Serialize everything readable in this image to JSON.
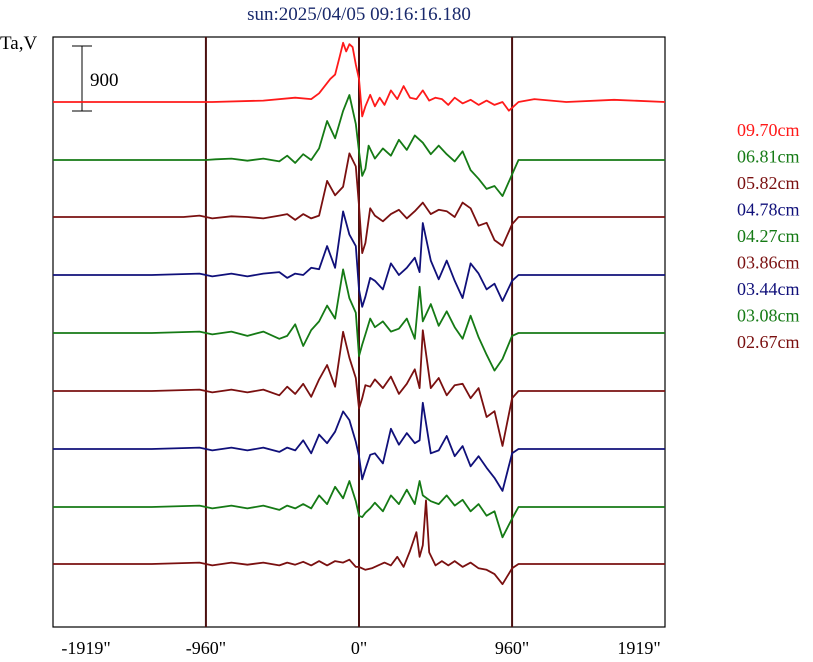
{
  "chart_data": {
    "type": "line",
    "title": "sun:2025/04/05 09:16:16.180",
    "ylabel": "Ta,V",
    "scale_bar_label": "900",
    "scale_bar_value": 900,
    "xlim": [
      -1919,
      1919
    ],
    "x_ticks": [
      -1919,
      -960,
      0,
      960,
      1919
    ],
    "x_tick_labels": [
      "-1919\"",
      "-960\"",
      "0\"",
      "960\"",
      "1919\""
    ],
    "vertical_lines": [
      -960,
      0,
      960
    ],
    "grid": false,
    "legend_position": "right",
    "series": [
      {
        "name": "09.70cm",
        "color": "#ff1a1a",
        "x": [
          -1919,
          -1000,
          -960,
          -920,
          -600,
          -400,
          -300,
          -250,
          -180,
          -150,
          -120,
          -100,
          -80,
          -60,
          -40,
          -20,
          0,
          20,
          40,
          70,
          100,
          130,
          160,
          200,
          240,
          280,
          320,
          360,
          400,
          440,
          480,
          520,
          560,
          600,
          650,
          700,
          750,
          800,
          850,
          900,
          940,
          960,
          1000,
          1100,
          1300,
          1600,
          1919
        ],
        "y": [
          0,
          0,
          0,
          0,
          20,
          60,
          40,
          120,
          320,
          380,
          640,
          820,
          700,
          800,
          760,
          520,
          320,
          -200,
          -60,
          100,
          -60,
          60,
          -40,
          160,
          40,
          220,
          60,
          40,
          160,
          20,
          60,
          40,
          -40,
          60,
          -20,
          30,
          -40,
          20,
          -40,
          0,
          -120,
          -80,
          0,
          40,
          0,
          30,
          0
        ]
      },
      {
        "name": "06.81cm",
        "color": "#157a15",
        "x": [
          -1919,
          -1200,
          -1000,
          -960,
          -900,
          -800,
          -700,
          -600,
          -500,
          -450,
          -400,
          -350,
          -300,
          -250,
          -200,
          -150,
          -100,
          -60,
          -20,
          0,
          20,
          40,
          60,
          100,
          150,
          200,
          250,
          300,
          350,
          400,
          450,
          500,
          550,
          600,
          650,
          700,
          750,
          800,
          850,
          900,
          960,
          1000,
          1919
        ],
        "y": [
          0,
          0,
          0,
          0,
          10,
          20,
          -10,
          20,
          -20,
          60,
          -40,
          80,
          0,
          160,
          540,
          300,
          680,
          900,
          500,
          120,
          -220,
          -120,
          200,
          20,
          160,
          60,
          280,
          140,
          340,
          240,
          80,
          200,
          80,
          -20,
          120,
          -140,
          -260,
          -400,
          -360,
          -500,
          -200,
          0,
          0
        ]
      },
      {
        "name": "05.82cm",
        "color": "#7a1010",
        "x": [
          -1919,
          -1100,
          -1000,
          -960,
          -920,
          -800,
          -700,
          -600,
          -500,
          -450,
          -400,
          -350,
          -300,
          -250,
          -200,
          -150,
          -100,
          -60,
          -20,
          0,
          20,
          40,
          70,
          100,
          150,
          200,
          250,
          300,
          350,
          400,
          450,
          500,
          550,
          600,
          650,
          700,
          750,
          800,
          850,
          900,
          960,
          1000,
          1919
        ],
        "y": [
          0,
          0,
          20,
          0,
          -20,
          10,
          0,
          -20,
          20,
          40,
          -40,
          40,
          -20,
          20,
          500,
          300,
          420,
          880,
          700,
          160,
          -500,
          -360,
          120,
          20,
          -60,
          40,
          100,
          -20,
          80,
          200,
          40,
          100,
          80,
          0,
          200,
          120,
          -120,
          -80,
          -320,
          -400,
          -100,
          0,
          0
        ]
      },
      {
        "name": "04.78cm",
        "color": "#10107a",
        "x": [
          -1919,
          -1300,
          -1000,
          -960,
          -920,
          -800,
          -700,
          -600,
          -500,
          -450,
          -400,
          -350,
          -300,
          -250,
          -200,
          -150,
          -100,
          -60,
          -20,
          0,
          20,
          40,
          70,
          100,
          150,
          200,
          250,
          300,
          350,
          380,
          400,
          450,
          500,
          550,
          600,
          650,
          700,
          750,
          800,
          850,
          900,
          960,
          1000,
          1919
        ],
        "y": [
          0,
          0,
          20,
          0,
          -20,
          20,
          -20,
          20,
          40,
          -40,
          20,
          0,
          100,
          80,
          400,
          100,
          880,
          560,
          400,
          -200,
          -440,
          -300,
          -40,
          -80,
          -200,
          160,
          0,
          100,
          240,
          40,
          720,
          200,
          -60,
          200,
          -80,
          -320,
          160,
          20,
          -200,
          -120,
          -360,
          -80,
          0,
          0
        ]
      },
      {
        "name": "04.27cm",
        "color": "#157a15",
        "x": [
          -1919,
          -1300,
          -1000,
          -960,
          -920,
          -800,
          -700,
          -600,
          -500,
          -450,
          -400,
          -350,
          -300,
          -250,
          -200,
          -150,
          -100,
          -60,
          -20,
          0,
          20,
          40,
          70,
          100,
          150,
          200,
          250,
          300,
          350,
          380,
          400,
          450,
          500,
          550,
          600,
          650,
          700,
          750,
          800,
          850,
          900,
          960,
          1000,
          1919
        ],
        "y": [
          0,
          0,
          20,
          0,
          -20,
          20,
          -40,
          20,
          -80,
          -40,
          120,
          -180,
          40,
          160,
          380,
          200,
          880,
          480,
          280,
          -320,
          -160,
          -20,
          200,
          80,
          160,
          20,
          60,
          200,
          -80,
          640,
          160,
          400,
          100,
          300,
          80,
          -80,
          240,
          -60,
          -300,
          -520,
          -360,
          -40,
          0,
          0
        ]
      },
      {
        "name": "03.86cm",
        "color": "#7a1010",
        "x": [
          -1919,
          -1300,
          -1000,
          -960,
          -920,
          -800,
          -700,
          -600,
          -500,
          -450,
          -400,
          -350,
          -300,
          -250,
          -200,
          -150,
          -100,
          -60,
          -20,
          0,
          20,
          40,
          70,
          100,
          150,
          200,
          250,
          300,
          350,
          380,
          400,
          450,
          500,
          550,
          600,
          650,
          700,
          750,
          800,
          850,
          900,
          960,
          1000,
          1919
        ],
        "y": [
          0,
          0,
          20,
          0,
          -20,
          20,
          -20,
          20,
          -60,
          60,
          -40,
          100,
          -80,
          160,
          360,
          60,
          820,
          460,
          180,
          -240,
          -100,
          80,
          60,
          160,
          40,
          200,
          -40,
          100,
          300,
          40,
          840,
          40,
          180,
          -60,
          80,
          100,
          -100,
          40,
          -360,
          -280,
          -760,
          -100,
          0,
          0
        ]
      },
      {
        "name": "03.44cm",
        "color": "#10107a",
        "x": [
          -1919,
          -1300,
          -1000,
          -960,
          -920,
          -800,
          -700,
          -600,
          -500,
          -450,
          -400,
          -350,
          -300,
          -250,
          -200,
          -150,
          -100,
          -60,
          -20,
          0,
          20,
          40,
          70,
          100,
          150,
          200,
          250,
          300,
          350,
          380,
          400,
          450,
          500,
          550,
          600,
          650,
          700,
          750,
          800,
          850,
          900,
          960,
          1000,
          1919
        ],
        "y": [
          0,
          0,
          20,
          0,
          -20,
          20,
          -20,
          20,
          -40,
          20,
          -20,
          120,
          -60,
          200,
          80,
          240,
          520,
          400,
          100,
          -100,
          -420,
          -280,
          -80,
          -60,
          -200,
          280,
          60,
          220,
          80,
          120,
          640,
          -60,
          -20,
          180,
          -100,
          40,
          -240,
          -100,
          -260,
          -400,
          -580,
          -60,
          0,
          0
        ]
      },
      {
        "name": "03.08cm",
        "color": "#157a15",
        "x": [
          -1919,
          -1300,
          -1000,
          -960,
          -920,
          -800,
          -700,
          -600,
          -500,
          -450,
          -400,
          -350,
          -300,
          -250,
          -200,
          -150,
          -100,
          -60,
          -20,
          0,
          20,
          40,
          70,
          100,
          150,
          200,
          250,
          300,
          350,
          380,
          400,
          450,
          500,
          550,
          600,
          650,
          700,
          750,
          800,
          850,
          900,
          960,
          1000,
          1919
        ],
        "y": [
          0,
          0,
          20,
          0,
          -20,
          20,
          -20,
          20,
          -40,
          20,
          -20,
          40,
          -20,
          160,
          40,
          280,
          120,
          360,
          80,
          -120,
          -140,
          -80,
          -20,
          60,
          -60,
          160,
          40,
          240,
          40,
          360,
          160,
          80,
          40,
          160,
          20,
          100,
          -60,
          40,
          -120,
          -60,
          -420,
          -160,
          0,
          0
        ]
      },
      {
        "name": "02.67cm",
        "color": "#7a1010",
        "x": [
          -1919,
          -1300,
          -1000,
          -960,
          -920,
          -800,
          -700,
          -600,
          -500,
          -450,
          -400,
          -350,
          -300,
          -250,
          -200,
          -150,
          -100,
          -60,
          -20,
          0,
          40,
          80,
          120,
          160,
          200,
          240,
          280,
          320,
          360,
          380,
          400,
          420,
          440,
          480,
          520,
          560,
          600,
          650,
          700,
          750,
          800,
          850,
          900,
          960,
          1000,
          1919
        ],
        "y": [
          0,
          0,
          20,
          0,
          -20,
          20,
          -10,
          20,
          -20,
          20,
          -10,
          30,
          -20,
          40,
          -20,
          40,
          20,
          60,
          -40,
          -40,
          -80,
          -60,
          -20,
          20,
          -20,
          100,
          -40,
          180,
          440,
          100,
          260,
          880,
          160,
          -20,
          40,
          -20,
          40,
          -40,
          20,
          -60,
          -80,
          -140,
          -280,
          -60,
          0,
          0
        ]
      }
    ]
  }
}
